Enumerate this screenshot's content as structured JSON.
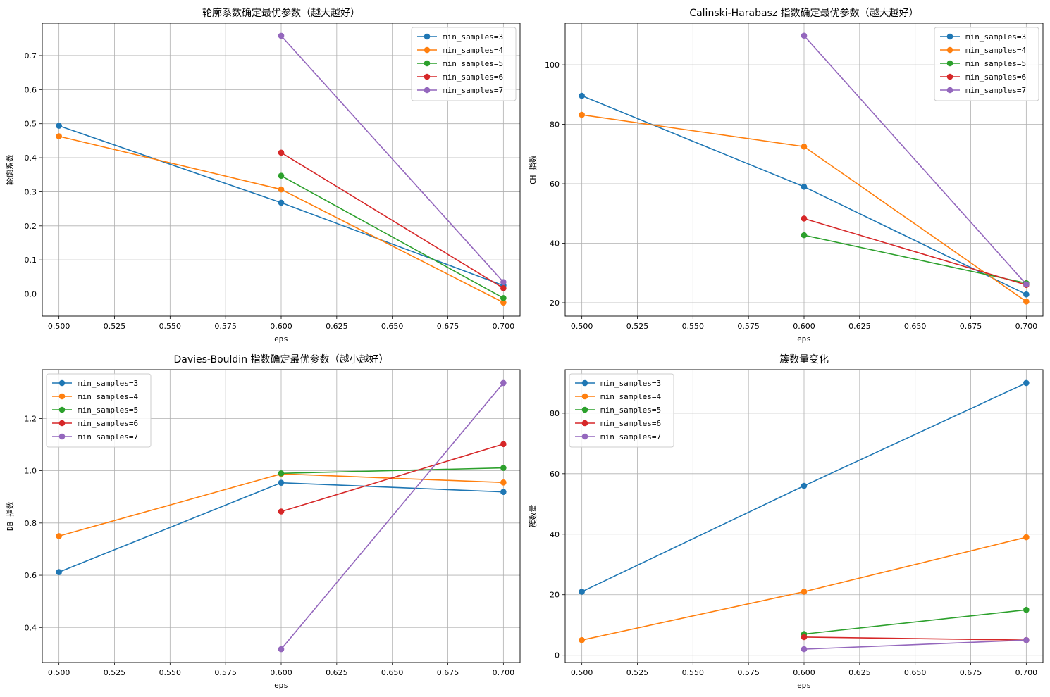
{
  "colors": [
    "#1f77b4",
    "#ff7f0e",
    "#2ca02c",
    "#d62728",
    "#9467bd"
  ],
  "chart_data": [
    {
      "type": "line",
      "title": "轮廓系数确定最优参数（越大越好）",
      "xlabel": "eps",
      "ylabel": "轮廓系数",
      "xlim": [
        0.4925,
        0.7075
      ],
      "ylim": [
        -0.065,
        0.795
      ],
      "xticks": [
        0.5,
        0.525,
        0.55,
        0.575,
        0.6,
        0.625,
        0.65,
        0.675,
        0.7
      ],
      "xtick_labels": [
        "0.500",
        "0.525",
        "0.550",
        "0.575",
        "0.600",
        "0.625",
        "0.650",
        "0.675",
        "0.700"
      ],
      "yticks": [
        0.0,
        0.1,
        0.2,
        0.3,
        0.4,
        0.5,
        0.6,
        0.7
      ],
      "ytick_labels": [
        "0.0",
        "0.1",
        "0.2",
        "0.3",
        "0.4",
        "0.5",
        "0.6",
        "0.7"
      ],
      "grid": true,
      "legend": "upper-right",
      "series": [
        {
          "name": "min_samples=3",
          "x": [
            0.5,
            0.6,
            0.7
          ],
          "y": [
            0.494,
            0.268,
            0.025
          ]
        },
        {
          "name": "min_samples=4",
          "x": [
            0.5,
            0.6,
            0.7
          ],
          "y": [
            0.463,
            0.307,
            -0.025
          ]
        },
        {
          "name": "min_samples=5",
          "x": [
            0.6,
            0.7
          ],
          "y": [
            0.347,
            -0.012
          ]
        },
        {
          "name": "min_samples=6",
          "x": [
            0.6,
            0.7
          ],
          "y": [
            0.415,
            0.017
          ]
        },
        {
          "name": "min_samples=7",
          "x": [
            0.6,
            0.7
          ],
          "y": [
            0.758,
            0.035
          ]
        }
      ]
    },
    {
      "type": "line",
      "title": "Calinski-Harabasz 指数确定最优参数（越大越好）",
      "xlabel": "eps",
      "ylabel": "CH 指数",
      "xlim": [
        0.4925,
        0.7075
      ],
      "ylim": [
        15.5,
        114.0
      ],
      "xticks": [
        0.5,
        0.525,
        0.55,
        0.575,
        0.6,
        0.625,
        0.65,
        0.675,
        0.7
      ],
      "xtick_labels": [
        "0.500",
        "0.525",
        "0.550",
        "0.575",
        "0.600",
        "0.625",
        "0.650",
        "0.675",
        "0.700"
      ],
      "yticks": [
        20,
        40,
        60,
        80,
        100
      ],
      "ytick_labels": [
        "20",
        "40",
        "60",
        "80",
        "100"
      ],
      "grid": true,
      "legend": "upper-right",
      "series": [
        {
          "name": "min_samples=3",
          "x": [
            0.5,
            0.6,
            0.7
          ],
          "y": [
            89.6,
            59.0,
            22.8
          ]
        },
        {
          "name": "min_samples=4",
          "x": [
            0.5,
            0.6,
            0.7
          ],
          "y": [
            83.2,
            72.5,
            20.4
          ]
        },
        {
          "name": "min_samples=5",
          "x": [
            0.6,
            0.7
          ],
          "y": [
            42.7,
            26.6
          ]
        },
        {
          "name": "min_samples=6",
          "x": [
            0.6,
            0.7
          ],
          "y": [
            48.3,
            26.0
          ]
        },
        {
          "name": "min_samples=7",
          "x": [
            0.6,
            0.7
          ],
          "y": [
            109.8,
            26.2
          ]
        }
      ]
    },
    {
      "type": "line",
      "title": "Davies-Bouldin 指数确定最优参数（越小越好）",
      "xlabel": "eps",
      "ylabel": "DB 指数",
      "xlim": [
        0.4925,
        0.7075
      ],
      "ylim": [
        0.266,
        1.387
      ],
      "xticks": [
        0.5,
        0.525,
        0.55,
        0.575,
        0.6,
        0.625,
        0.65,
        0.675,
        0.7
      ],
      "xtick_labels": [
        "0.500",
        "0.525",
        "0.550",
        "0.575",
        "0.600",
        "0.625",
        "0.650",
        "0.675",
        "0.700"
      ],
      "yticks": [
        0.4,
        0.6,
        0.8,
        1.0,
        1.2
      ],
      "ytick_labels": [
        "0.4",
        "0.6",
        "0.8",
        "1.0",
        "1.2"
      ],
      "grid": true,
      "legend": "upper-left",
      "series": [
        {
          "name": "min_samples=3",
          "x": [
            0.5,
            0.6,
            0.7
          ],
          "y": [
            0.612,
            0.954,
            0.919
          ]
        },
        {
          "name": "min_samples=4",
          "x": [
            0.5,
            0.6,
            0.7
          ],
          "y": [
            0.75,
            0.988,
            0.955
          ]
        },
        {
          "name": "min_samples=5",
          "x": [
            0.6,
            0.7
          ],
          "y": [
            0.99,
            1.011
          ]
        },
        {
          "name": "min_samples=6",
          "x": [
            0.6,
            0.7
          ],
          "y": [
            0.844,
            1.102
          ]
        },
        {
          "name": "min_samples=7",
          "x": [
            0.6,
            0.7
          ],
          "y": [
            0.317,
            1.336
          ]
        }
      ]
    },
    {
      "type": "line",
      "title": "簇数量变化",
      "xlabel": "eps",
      "ylabel": "簇数量",
      "xlim": [
        0.4925,
        0.7075
      ],
      "ylim": [
        -2.4,
        94.4
      ],
      "xticks": [
        0.5,
        0.525,
        0.55,
        0.575,
        0.6,
        0.625,
        0.65,
        0.675,
        0.7
      ],
      "xtick_labels": [
        "0.500",
        "0.525",
        "0.550",
        "0.575",
        "0.600",
        "0.625",
        "0.650",
        "0.675",
        "0.700"
      ],
      "yticks": [
        0,
        20,
        40,
        60,
        80
      ],
      "ytick_labels": [
        "0",
        "20",
        "40",
        "60",
        "80"
      ],
      "grid": true,
      "legend": "upper-left",
      "series": [
        {
          "name": "min_samples=3",
          "x": [
            0.5,
            0.6,
            0.7
          ],
          "y": [
            21,
            56,
            90
          ]
        },
        {
          "name": "min_samples=4",
          "x": [
            0.5,
            0.6,
            0.7
          ],
          "y": [
            5,
            21,
            39
          ]
        },
        {
          "name": "min_samples=5",
          "x": [
            0.6,
            0.7
          ],
          "y": [
            7,
            15
          ]
        },
        {
          "name": "min_samples=6",
          "x": [
            0.6,
            0.7
          ],
          "y": [
            6,
            5
          ]
        },
        {
          "name": "min_samples=7",
          "x": [
            0.6,
            0.7
          ],
          "y": [
            2,
            5
          ]
        }
      ]
    }
  ]
}
